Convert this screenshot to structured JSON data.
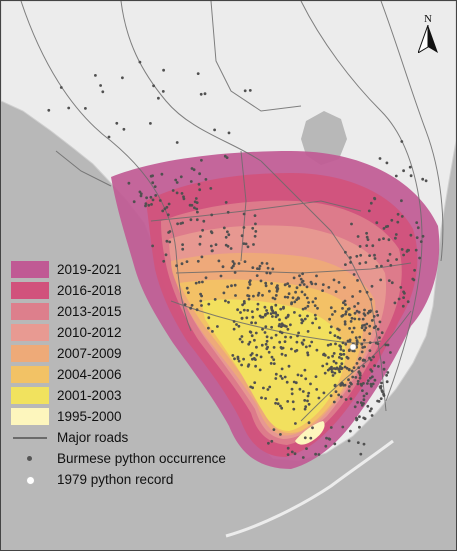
{
  "north_arrow": {
    "label": "N"
  },
  "legend": {
    "periods": [
      {
        "label": "2019-2021",
        "color": "#c05a94"
      },
      {
        "label": "2016-2018",
        "color": "#d1527c"
      },
      {
        "label": "2013-2015",
        "color": "#dd7f8c"
      },
      {
        "label": "2010-2012",
        "color": "#e89a92"
      },
      {
        "label": "2007-2009",
        "color": "#eeaa78"
      },
      {
        "label": "2004-2006",
        "color": "#f2c265"
      },
      {
        "label": "2001-2003",
        "color": "#f1e25e"
      },
      {
        "label": "1995-2000",
        "color": "#fdf6bd"
      }
    ],
    "roads_label": "Major roads",
    "occurrence_label": "Burmese python occurrence",
    "record_label": "1979 python record"
  },
  "colors": {
    "water": "#b8b8b8",
    "land": "#ececec",
    "road": "#6b6b6b",
    "occurrence": "#505050",
    "record": "#ffffff"
  }
}
